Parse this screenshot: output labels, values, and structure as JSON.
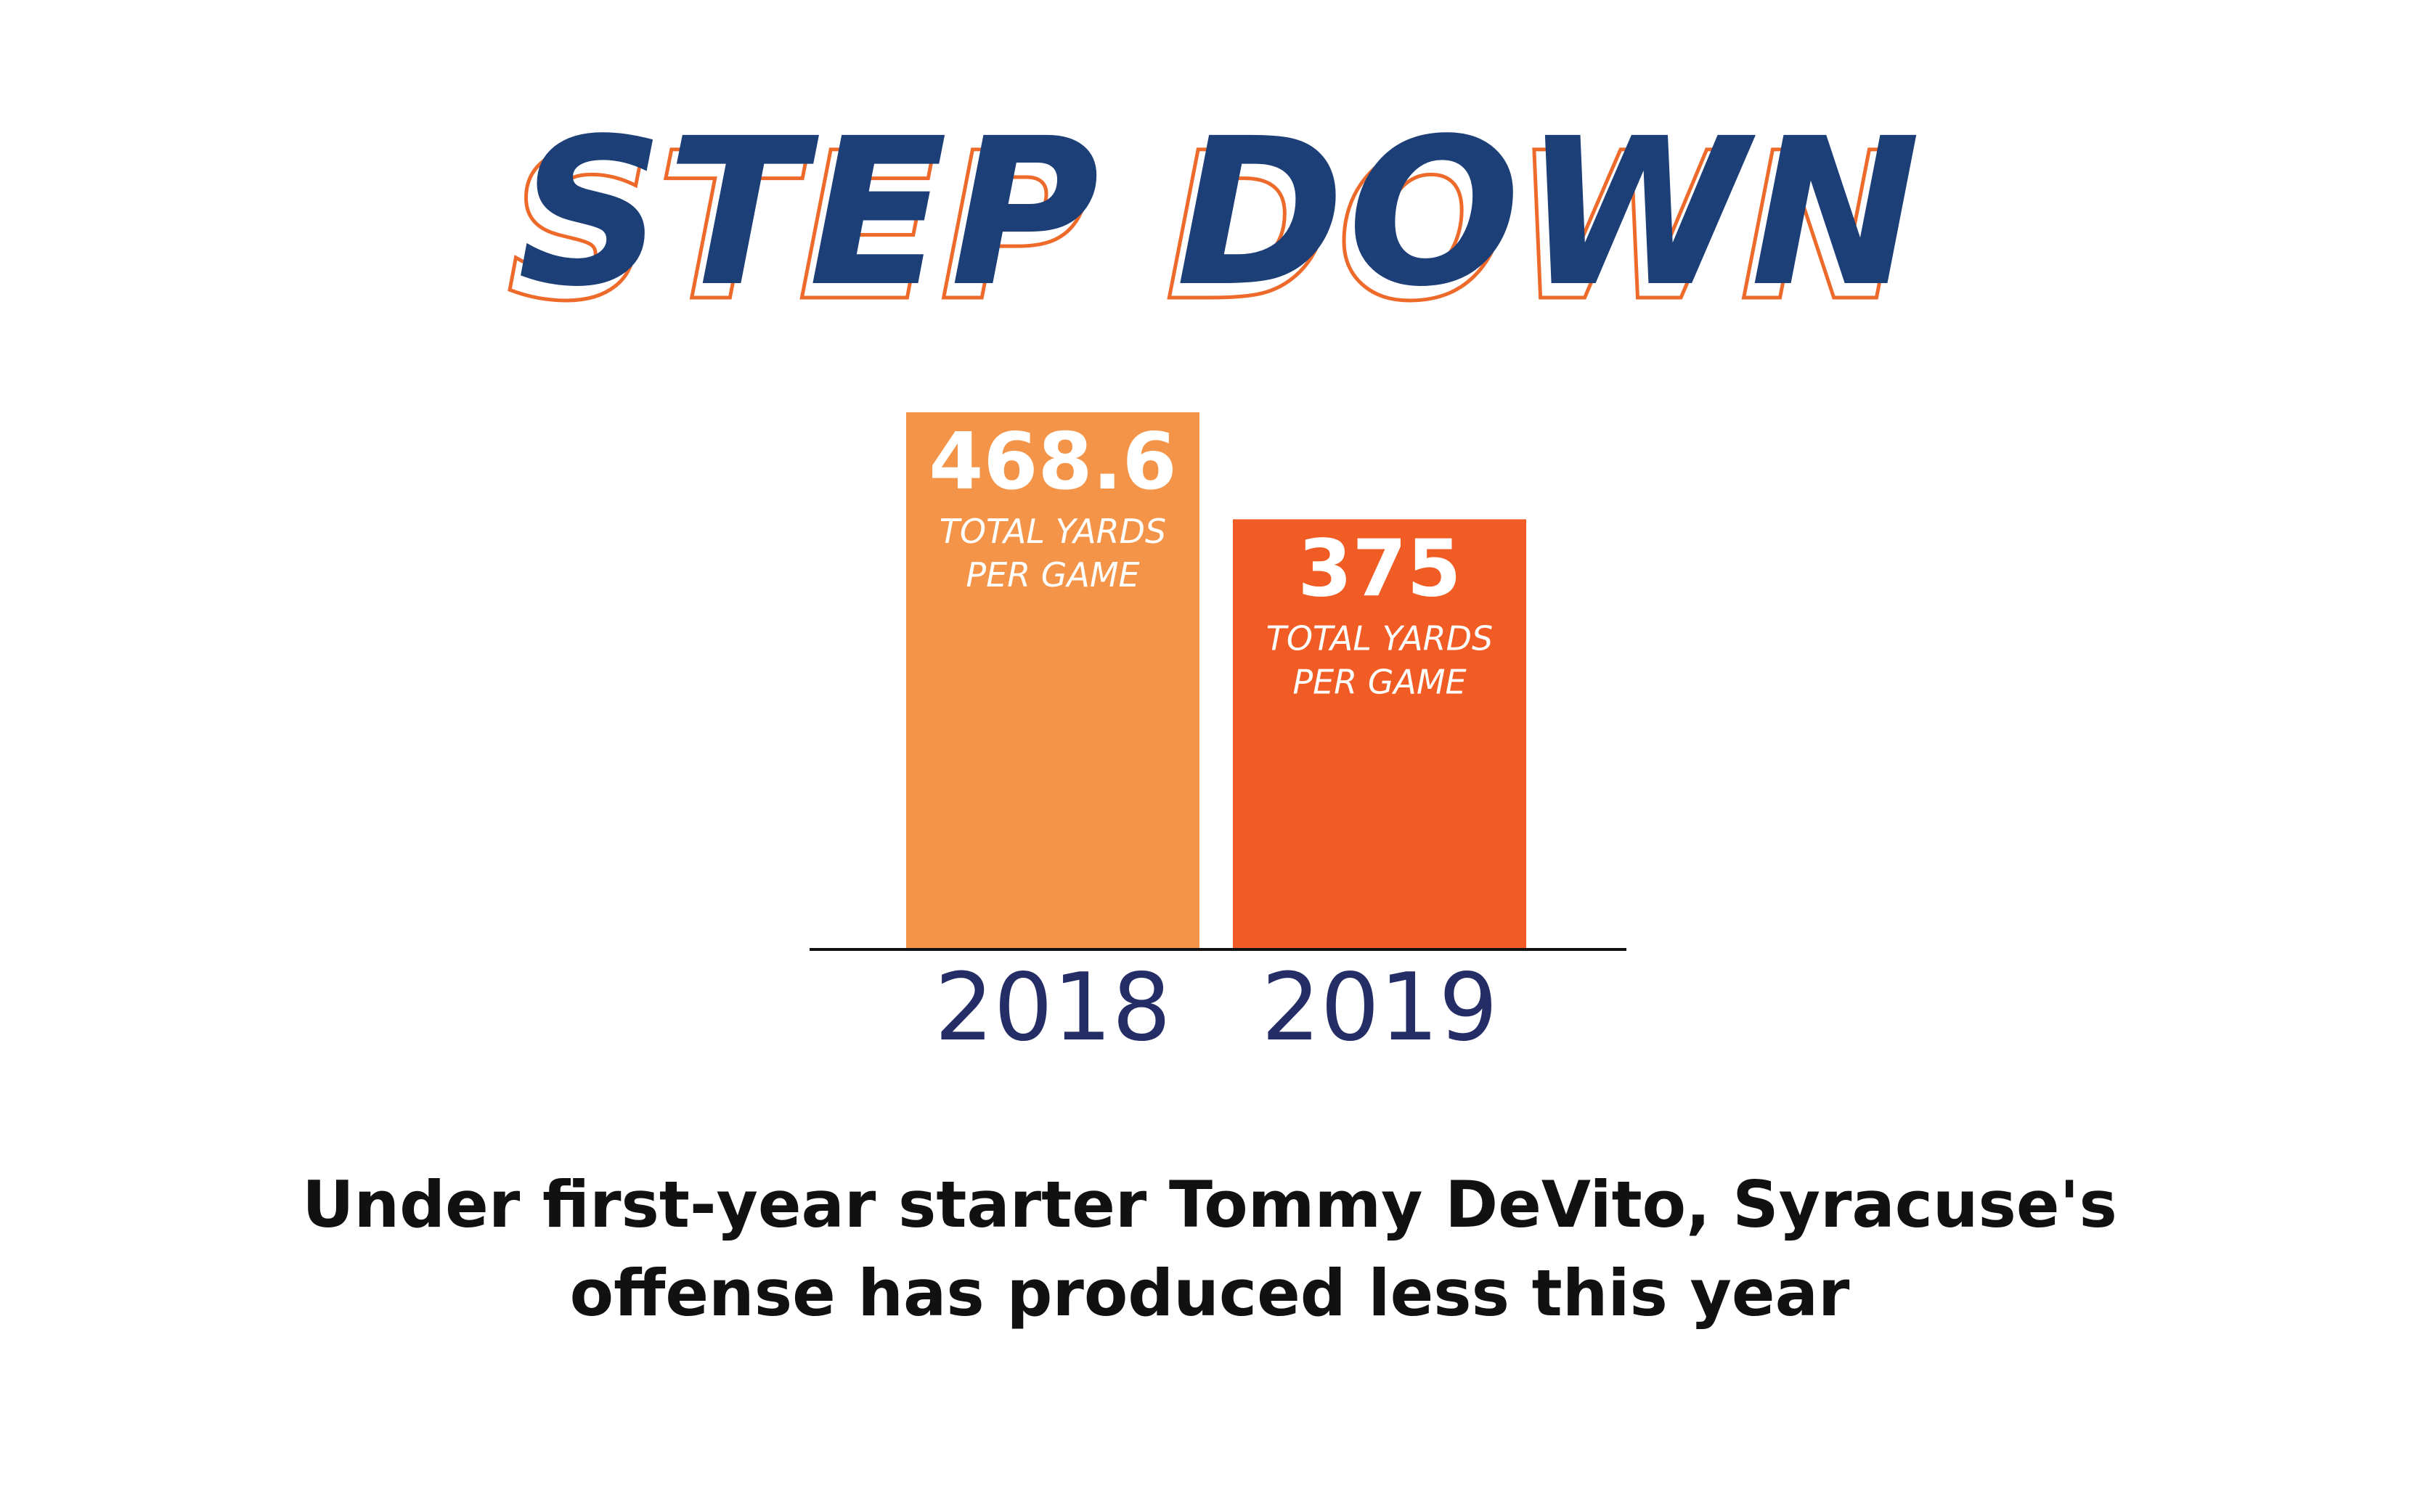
{
  "chart_data": {
    "type": "bar",
    "title": "STEP DOWN",
    "subtitle": "Under first-year starter Tommy DeVito, Syracuse's offense has produced less this year",
    "categories": [
      "2018",
      "2019"
    ],
    "values": [
      468.6,
      375
    ],
    "value_labels": [
      "468.6",
      "375"
    ],
    "bar_label": "TOTAL YARDS PER GAME",
    "bar_label_lines": [
      "TOTAL YARDS",
      "PER GAME"
    ],
    "bar_colors": [
      "#f39449",
      "#f15c25"
    ],
    "ylim": [
      0,
      468.6
    ],
    "grid": false,
    "legend": "none",
    "xlabel": "",
    "ylabel": ""
  },
  "colors": {
    "title": "#1d3f78",
    "title_outline": "#ee6a2a",
    "category_text": "#252d66",
    "caption_text": "#111111",
    "baseline": "#111111"
  },
  "caption_lines": [
    "Under first-year starter Tommy DeVito, Syracuse's",
    "offense has produced less this year"
  ]
}
